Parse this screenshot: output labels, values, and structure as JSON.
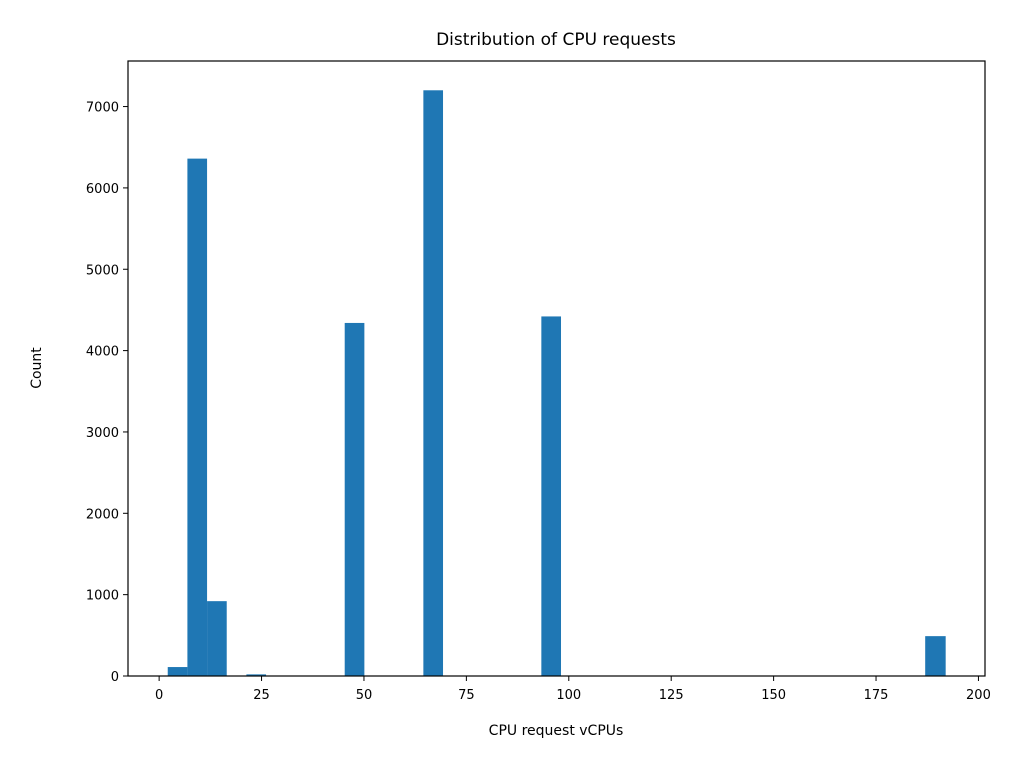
{
  "chart_data": {
    "type": "bar",
    "title": "Distribution of CPU requests",
    "xlabel": "CPU request vCPUs",
    "ylabel": "Count",
    "xlim": [
      -7.6,
      201.6
    ],
    "ylim": [
      0,
      7560
    ],
    "xticks": [
      0,
      25,
      50,
      75,
      100,
      125,
      150,
      175,
      200
    ],
    "yticks": [
      0,
      1000,
      2000,
      3000,
      4000,
      5000,
      6000,
      7000
    ],
    "grid": false,
    "bar_color": "#1f77b4",
    "bins": [
      {
        "x0": 2.1,
        "x1": 6.9,
        "value": 110
      },
      {
        "x0": 6.9,
        "x1": 11.7,
        "value": 6360
      },
      {
        "x0": 11.7,
        "x1": 16.5,
        "value": 920
      },
      {
        "x0": 21.3,
        "x1": 26.1,
        "value": 20
      },
      {
        "x0": 45.3,
        "x1": 50.1,
        "value": 4340
      },
      {
        "x0": 64.5,
        "x1": 69.3,
        "value": 7200
      },
      {
        "x0": 93.3,
        "x1": 98.1,
        "value": 4420
      },
      {
        "x0": 187.0,
        "x1": 192.0,
        "value": 490
      }
    ]
  }
}
